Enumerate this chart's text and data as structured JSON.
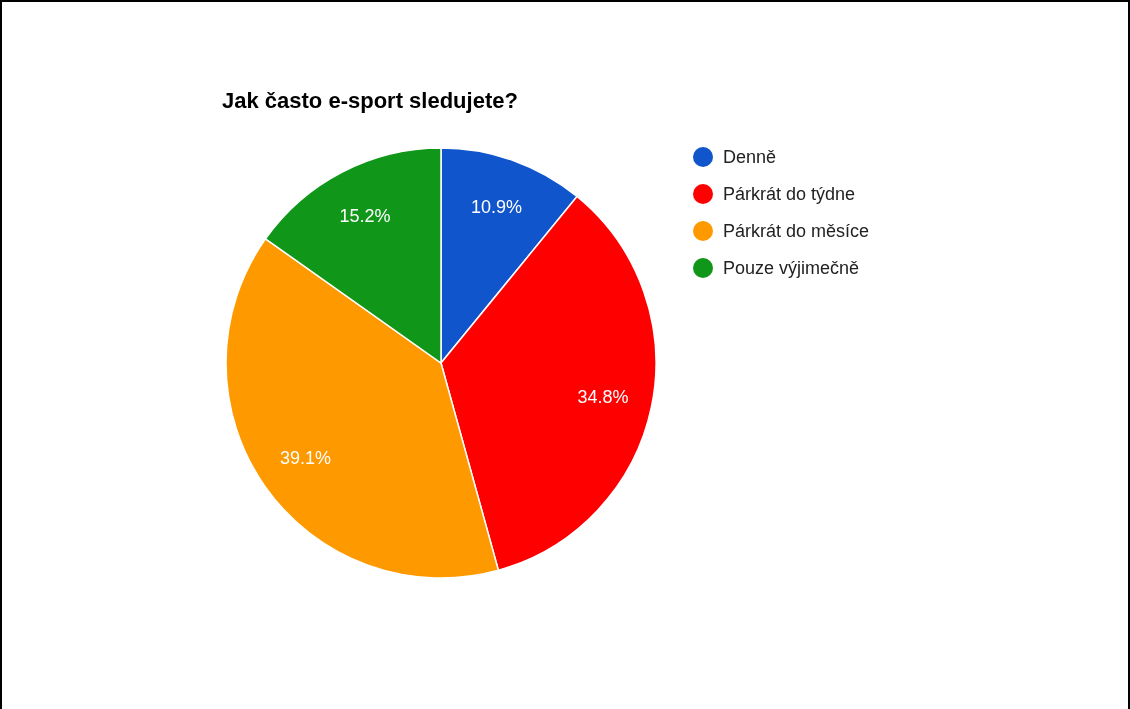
{
  "chart_data": {
    "type": "pie",
    "title": "Jak často e-sport sledujete?",
    "categories": [
      "Denně",
      "Párkrát do týdne",
      "Párkrát do měsíce",
      "Pouze výjimečně"
    ],
    "values": [
      10.9,
      34.8,
      39.1,
      15.2
    ],
    "colors": [
      "#1155cc",
      "#ff0000",
      "#ff9900",
      "#109618"
    ],
    "value_labels": [
      "10.9%",
      "34.8%",
      "39.1%",
      "15.2%"
    ],
    "legend": "right"
  }
}
